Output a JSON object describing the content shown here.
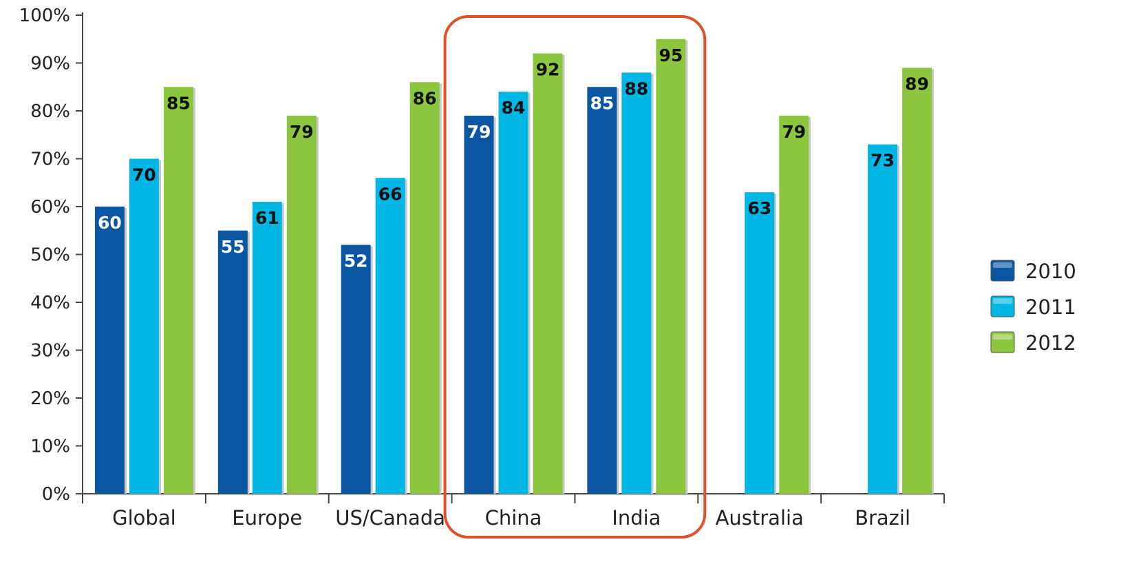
{
  "chart_data": {
    "type": "bar",
    "categories": [
      "Global",
      "Europe",
      "US/Canada",
      "China",
      "India",
      "Australia",
      "Brazil"
    ],
    "series": [
      {
        "name": "2010",
        "color": "#0b56a2",
        "label_color": "#ffffff",
        "values": [
          60,
          55,
          52,
          79,
          85,
          null,
          null
        ]
      },
      {
        "name": "2011",
        "color": "#00b6e4",
        "label_color": "#111111",
        "values": [
          70,
          61,
          66,
          84,
          88,
          63,
          73
        ]
      },
      {
        "name": "2012",
        "color": "#8cc63f",
        "label_color": "#111111",
        "values": [
          85,
          79,
          86,
          92,
          95,
          79,
          89
        ]
      }
    ],
    "y_ticks": [
      "0%",
      "10%",
      "20%",
      "30%",
      "40%",
      "50%",
      "60%",
      "70%",
      "80%",
      "90%",
      "100%"
    ],
    "ylim": [
      0,
      100
    ],
    "grid": false,
    "legend": "right",
    "highlight": {
      "categories": [
        "China",
        "India"
      ],
      "color": "#e0502a"
    }
  }
}
